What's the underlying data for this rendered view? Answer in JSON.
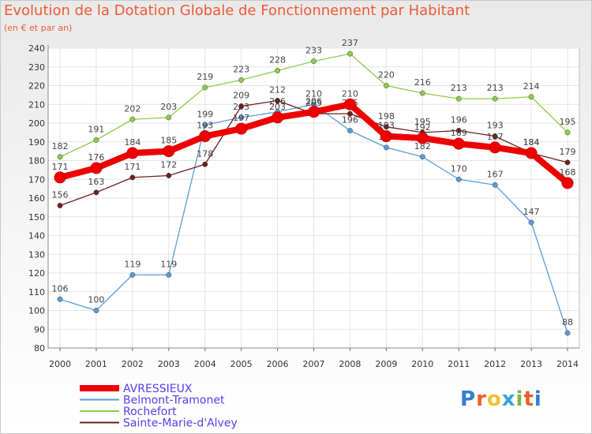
{
  "title": "Evolution de la Dotation Globale de Fonctionnement par Habitant",
  "subtitle": "(en € et par an)",
  "logo": {
    "text": "Proxiti",
    "letter_colors": [
      "#2f7fcf",
      "#e8602c",
      "#f2c12e",
      "#3fa0d8",
      "#7ab648",
      "#e8602c",
      "#2f7fcf"
    ]
  },
  "chart_data": {
    "type": "line",
    "title": "Evolution de la Dotation Globale de Fonctionnement par Habitant",
    "ylabel": "(en € et par an)",
    "x": [
      2000,
      2001,
      2002,
      2003,
      2004,
      2005,
      2006,
      2007,
      2008,
      2009,
      2010,
      2011,
      2012,
      2013,
      2014
    ],
    "ylim": [
      80,
      240
    ],
    "yticks": [
      80,
      90,
      100,
      110,
      120,
      130,
      140,
      150,
      160,
      170,
      180,
      190,
      200,
      210,
      220,
      230,
      240
    ],
    "grid": true,
    "legend_position": "bottom-left",
    "series": [
      {
        "name": "AVRESSIEUX",
        "color": "#ee0000",
        "emphasis": true,
        "values": [
          171,
          176,
          184,
          185,
          193,
          197,
          203,
          206,
          210,
          193,
          192,
          189,
          187,
          184,
          168
        ]
      },
      {
        "name": "Belmont-Tramonet",
        "color": "#5b9bd5",
        "values": [
          106,
          100,
          119,
          119,
          199,
          203,
          206,
          210,
          196,
          187,
          182,
          170,
          167,
          147,
          88
        ]
      },
      {
        "name": "Rochefort",
        "color": "#8ccc48",
        "values": [
          182,
          191,
          202,
          203,
          219,
          223,
          228,
          233,
          237,
          220,
          216,
          213,
          213,
          214,
          195
        ]
      },
      {
        "name": "Sainte-Marie-d'Alvey",
        "color": "#6b1f1f",
        "values": [
          156,
          163,
          171,
          172,
          178,
          209,
          212,
          205,
          205,
          198,
          195,
          196,
          193,
          184,
          179
        ]
      }
    ]
  }
}
